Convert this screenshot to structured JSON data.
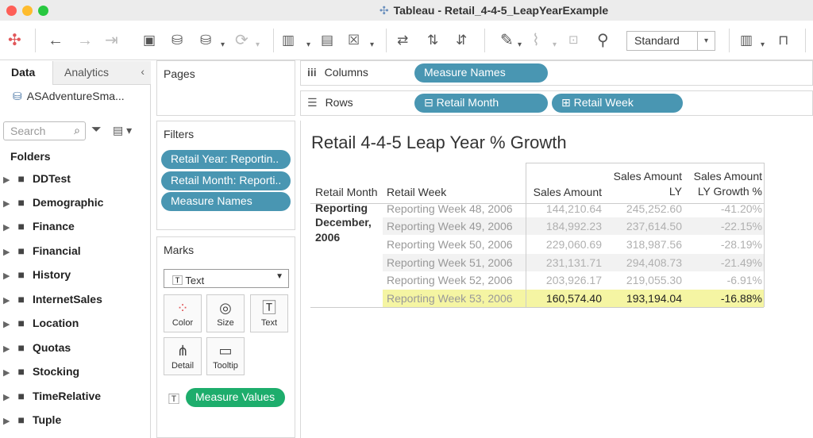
{
  "window": {
    "title": "Tableau - Retail_4-4-5_LeapYearExample"
  },
  "toolbar": {
    "fit_label": "Standard"
  },
  "left_pane": {
    "tab_data": "Data",
    "tab_analytics": "Analytics",
    "datasource": "ASAdventureSma...",
    "search_placeholder": "Search",
    "folders_header": "Folders",
    "folders": [
      "DDTest",
      "Demographic",
      "Finance",
      "Financial",
      "History",
      "InternetSales",
      "Location",
      "Quotas",
      "Stocking",
      "TimeRelative",
      "Tuple"
    ]
  },
  "pages_card": {
    "title": "Pages"
  },
  "filters_card": {
    "title": "Filters",
    "pills": [
      "Retail Year: Reportin..",
      "Retail Month: Reporti..",
      "Measure Names"
    ]
  },
  "marks_card": {
    "title": "Marks",
    "mark_type": "Text",
    "buttons": [
      "Color",
      "Size",
      "Text",
      "Detail",
      "Tooltip"
    ],
    "pill": "Measure Values"
  },
  "columns_shelf": {
    "label": "Columns",
    "pills": [
      "Measure Names"
    ]
  },
  "rows_shelf": {
    "label": "Rows",
    "pills": [
      "Retail Month",
      "Retail Week"
    ]
  },
  "viz": {
    "title": "Retail 4-4-5 Leap Year % Growth",
    "headers": {
      "retail_month": "Retail Month",
      "retail_week": "Retail Week",
      "sales_amount": "Sales Amount",
      "sales_amount_ly_1": "Sales Amount",
      "sales_amount_ly_2": "LY",
      "growth_1": "Sales Amount",
      "growth_2": "LY Growth %"
    },
    "month_label_1": "Reporting",
    "month_label_2": "December,",
    "month_label_3": "2006",
    "rows": [
      {
        "week": "Reporting Week 48, 2006",
        "sales": "144,210.64",
        "sales_ly": "245,252.60",
        "growth": "-41.20%"
      },
      {
        "week": "Reporting Week 49, 2006",
        "sales": "184,992.23",
        "sales_ly": "237,614.50",
        "growth": "-22.15%"
      },
      {
        "week": "Reporting Week 50, 2006",
        "sales": "229,060.69",
        "sales_ly": "318,987.56",
        "growth": "-28.19%"
      },
      {
        "week": "Reporting Week 51, 2006",
        "sales": "231,131.71",
        "sales_ly": "294,408.73",
        "growth": "-21.49%"
      },
      {
        "week": "Reporting Week 52, 2006",
        "sales": "203,926.17",
        "sales_ly": "219,055.30",
        "growth": "-6.91%"
      },
      {
        "week": "Reporting Week 53, 2006",
        "sales": "160,574.40",
        "sales_ly": "193,194.04",
        "growth": "-16.88%"
      }
    ],
    "highlight_color": "#f5f5a3"
  }
}
